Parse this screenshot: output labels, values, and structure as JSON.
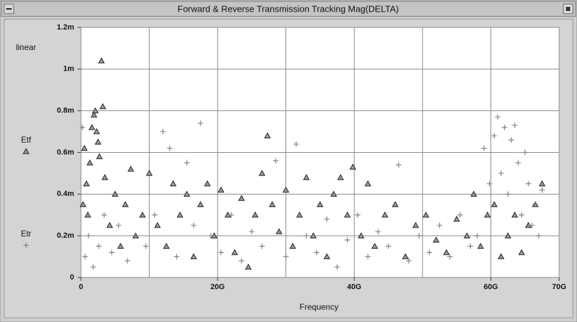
{
  "chart_data": {
    "type": "scatter",
    "title": "Forward & Reverse Transmission Tracking  Mag(DELTA)",
    "scale_label": "linear",
    "x_label": "Frequency",
    "xlim": [
      0,
      70
    ],
    "xticks": [
      0,
      {
        "value": 20,
        "label": "20G"
      },
      {
        "value": 40,
        "label": "40G"
      },
      {
        "value": 60,
        "label": "60G"
      },
      {
        "value": 70,
        "label": "70G"
      }
    ],
    "minor_xticks": [
      10,
      30,
      50
    ],
    "ylim": [
      0,
      1.2
    ],
    "yticks": [
      0,
      {
        "value": 0.2,
        "label": "0.2m"
      },
      {
        "value": 0.4,
        "label": "0.4m"
      },
      {
        "value": 0.6,
        "label": "0.6m"
      },
      {
        "value": 0.8,
        "label": "0.8m"
      },
      {
        "value": 1,
        "label": "1m"
      },
      {
        "value": 1.2,
        "label": "1.2m"
      }
    ],
    "grid": true,
    "series": [
      {
        "name": "Etf",
        "marker": "triangle",
        "color": "#222222",
        "fill": "#9a9a9a",
        "x": [
          0.3,
          0.5,
          0.8,
          1.0,
          1.3,
          1.6,
          1.9,
          2.1,
          2.3,
          2.5,
          2.7,
          3.0,
          3.2,
          3.5,
          4.2,
          5.0,
          5.8,
          6.5,
          7.3,
          8.0,
          9.0,
          10.0,
          11.2,
          12.5,
          13.5,
          14.5,
          15.5,
          16.5,
          17.5,
          18.5,
          19.5,
          20.5,
          21.5,
          22.5,
          23.5,
          24.5,
          25.5,
          26.5,
          27.3,
          28.0,
          29.0,
          30.0,
          31.0,
          32.0,
          33.0,
          34.0,
          35.0,
          36.0,
          37.0,
          38.0,
          39.0,
          39.8,
          41.0,
          42.0,
          43.0,
          44.5,
          46.0,
          47.5,
          49.0,
          50.5,
          52.0,
          53.5,
          55.0,
          56.5,
          57.5,
          58.5,
          59.5,
          60.5,
          61.5,
          62.5,
          63.5,
          64.5,
          65.5,
          66.5,
          67.5
        ],
        "values": [
          0.35,
          0.62,
          0.45,
          0.3,
          0.55,
          0.72,
          0.78,
          0.8,
          0.7,
          0.65,
          0.58,
          1.04,
          0.82,
          0.48,
          0.25,
          0.4,
          0.15,
          0.35,
          0.52,
          0.2,
          0.3,
          0.5,
          0.25,
          0.15,
          0.45,
          0.3,
          0.4,
          0.1,
          0.35,
          0.45,
          0.2,
          0.42,
          0.3,
          0.12,
          0.38,
          0.05,
          0.3,
          0.5,
          0.68,
          0.35,
          0.22,
          0.42,
          0.15,
          0.3,
          0.48,
          0.2,
          0.35,
          0.1,
          0.4,
          0.48,
          0.3,
          0.53,
          0.2,
          0.45,
          0.15,
          0.3,
          0.35,
          0.1,
          0.25,
          0.3,
          0.18,
          0.12,
          0.28,
          0.2,
          0.4,
          0.15,
          0.3,
          0.35,
          0.1,
          0.2,
          0.3,
          0.12,
          0.25,
          0.35,
          0.45
        ]
      },
      {
        "name": "Etr",
        "marker": "plus",
        "color": "#808080",
        "x": [
          0.2,
          0.6,
          1.1,
          1.8,
          2.6,
          3.4,
          4.5,
          5.5,
          6.8,
          8.0,
          9.5,
          10.8,
          12.0,
          13.0,
          14.0,
          15.5,
          16.5,
          17.5,
          19.0,
          20.5,
          22.0,
          23.5,
          25.0,
          26.5,
          28.5,
          30.0,
          31.5,
          33.0,
          34.5,
          36.0,
          37.5,
          39.0,
          40.5,
          42.0,
          43.5,
          45.0,
          46.5,
          48.0,
          49.5,
          51.0,
          52.5,
          54.0,
          55.5,
          57.0,
          58.0,
          59.0,
          59.8,
          60.5,
          61.0,
          61.5,
          62.0,
          62.5,
          63.0,
          63.5,
          64.0,
          64.5,
          65.0,
          65.5,
          66.0,
          66.5,
          67.0,
          67.5
        ],
        "values": [
          0.72,
          0.1,
          0.2,
          0.05,
          0.15,
          0.3,
          0.12,
          0.25,
          0.08,
          0.2,
          0.15,
          0.3,
          0.7,
          0.62,
          0.1,
          0.55,
          0.25,
          0.74,
          0.2,
          0.12,
          0.3,
          0.08,
          0.22,
          0.15,
          0.56,
          0.1,
          0.64,
          0.2,
          0.12,
          0.28,
          0.05,
          0.18,
          0.3,
          0.1,
          0.22,
          0.15,
          0.54,
          0.08,
          0.2,
          0.12,
          0.25,
          0.1,
          0.3,
          0.15,
          0.2,
          0.62,
          0.45,
          0.68,
          0.77,
          0.5,
          0.72,
          0.4,
          0.66,
          0.73,
          0.55,
          0.3,
          0.6,
          0.45,
          0.25,
          0.35,
          0.2,
          0.42
        ]
      }
    ]
  }
}
